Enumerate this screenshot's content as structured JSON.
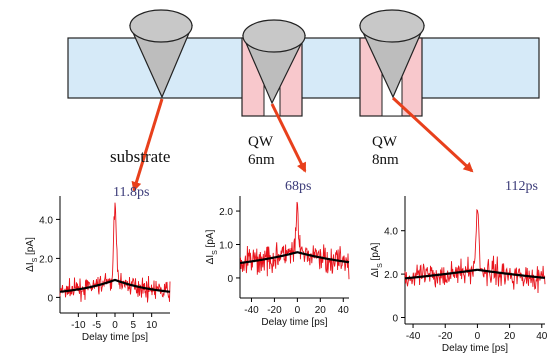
{
  "schematic": {
    "labels": {
      "substrate": "substrate",
      "qw1_name": "QW",
      "qw1_width": "6nm",
      "qw2_name": "QW",
      "qw2_width": "8nm"
    },
    "colors": {
      "substrate": "#d6eaf8",
      "quantum_well": "#f8c8cc",
      "tip": "#bdbdbd",
      "arrow": "#e8401c"
    }
  },
  "chart_data": [
    {
      "type": "line",
      "annotation": "11.8ps",
      "ylabel": "ΔI_S [pA]",
      "xlabel": "Delay time [ps]",
      "xlim": [
        -15,
        15
      ],
      "ylim": [
        -0.8,
        5.2
      ],
      "xticks": [
        -10,
        -5,
        0,
        5,
        10
      ],
      "xtick_labels": [
        "-10",
        "-5",
        "0",
        "5",
        "10"
      ],
      "yticks": [
        0,
        2,
        4
      ],
      "ytick_labels": [
        "0",
        "2.0",
        "4.0"
      ],
      "series": [
        {
          "style": "noisy-data",
          "color": "#e8141c",
          "baseline": 0.05,
          "noise": 0.45,
          "peak": 4.9,
          "peak_width": 0.35
        },
        {
          "style": "fit",
          "color": "#000000",
          "amplitude": 0.85,
          "baseline": 0.05,
          "tau_ps": 11.8
        }
      ]
    },
    {
      "type": "line",
      "annotation": "68ps",
      "ylabel": "ΔI_S [pA]",
      "xlabel": "Delay time [ps]",
      "xlim": [
        -50,
        45
      ],
      "ylim": [
        -0.6,
        2.45
      ],
      "xticks": [
        -40,
        -20,
        0,
        20,
        40
      ],
      "xtick_labels": [
        "-40",
        "-20",
        "0",
        "20",
        "40"
      ],
      "yticks": [
        0,
        1,
        2
      ],
      "ytick_labels": [
        "0",
        "1.0",
        "2.0"
      ],
      "series": [
        {
          "style": "noisy-data",
          "color": "#e8141c",
          "baseline": 0.15,
          "noise": 0.42,
          "peak": 2.4,
          "peak_width": 0.8
        },
        {
          "style": "fit",
          "color": "#000000",
          "amplitude": 0.62,
          "baseline": 0.15,
          "tau_ps": 68
        }
      ]
    },
    {
      "type": "line",
      "annotation": "112ps",
      "ylabel": "ΔI_S [pA]",
      "xlabel": "Delay time [ps]",
      "xlim": [
        -45,
        42
      ],
      "ylim": [
        -0.3,
        5.6
      ],
      "xticks": [
        -40,
        -20,
        0,
        20,
        40
      ],
      "xtick_labels": [
        "-40",
        "-20",
        "0",
        "20",
        "40"
      ],
      "yticks": [
        0,
        2,
        4
      ],
      "ytick_labels": [
        "0",
        "2.0",
        "4.0"
      ],
      "series": [
        {
          "style": "noisy-data",
          "color": "#e8141c",
          "baseline": 1.0,
          "noise": 0.55,
          "peak": 5.4,
          "peak_width": 0.8
        },
        {
          "style": "fit",
          "color": "#000000",
          "amplitude": 1.2,
          "baseline": 1.0,
          "tau_ps": 112
        }
      ]
    }
  ]
}
